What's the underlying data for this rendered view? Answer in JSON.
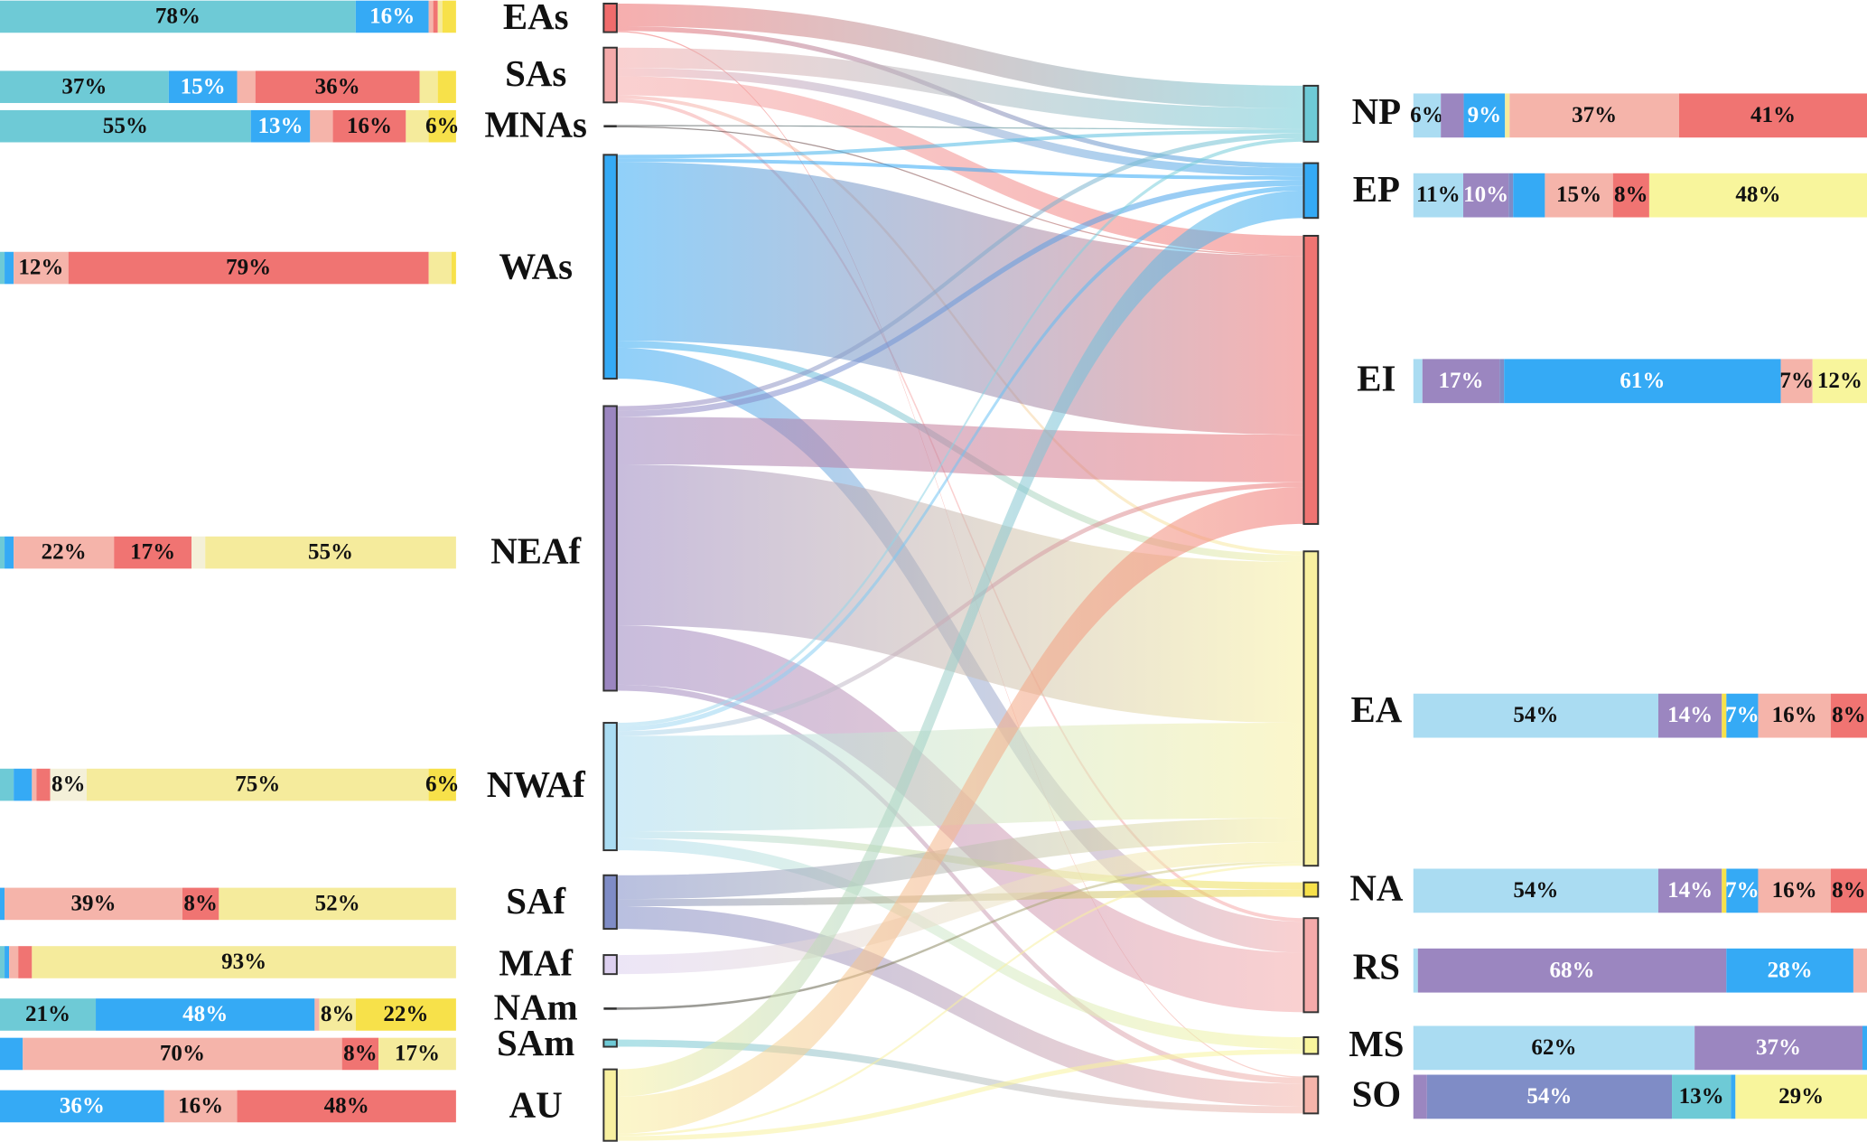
{
  "chart_data": {
    "type": "sankey",
    "nodes": [
      {
        "name": "EAs",
        "color": "#f06c6c",
        "bar": {
          "values": [
            78,
            16,
            1,
            1,
            1,
            3
          ],
          "colors": [
            "#6ecad6",
            "#35aaf5",
            "#f5b4aa",
            "#f07472",
            "#f5eb9c",
            "#f7e14a"
          ],
          "value_labels": [
            "78%",
            "16%",
            null,
            null,
            null,
            null
          ]
        }
      },
      {
        "name": "SAs",
        "color": "#f5aaaa",
        "bar": {
          "values": [
            37,
            15,
            4,
            36,
            4,
            4
          ],
          "colors": [
            "#6ecad6",
            "#35aaf5",
            "#f5b4aa",
            "#f07472",
            "#f5eb9c",
            "#f7e14a"
          ],
          "value_labels": [
            "37%",
            "15%",
            null,
            "36%",
            null,
            null
          ]
        }
      },
      {
        "name": "MNAs",
        "color": "#333333",
        "bar": {
          "values": [
            55,
            13,
            5,
            16,
            5,
            6
          ],
          "colors": [
            "#6ecad6",
            "#35aaf5",
            "#f5b4aa",
            "#f07472",
            "#f5eb9c",
            "#f7e14a"
          ],
          "value_labels": [
            "55%",
            "13%",
            null,
            "16%",
            null,
            "6%"
          ]
        }
      },
      {
        "name": "WAs",
        "color": "#35aaf5",
        "bar": {
          "values": [
            1,
            2,
            12,
            79,
            5,
            1
          ],
          "colors": [
            "#6ecad6",
            "#35aaf5",
            "#f5b4aa",
            "#f07472",
            "#f5eb9c",
            "#f7e14a"
          ],
          "value_labels": [
            null,
            null,
            "12%",
            "79%",
            null,
            null
          ]
        }
      },
      {
        "name": "NEAf",
        "color": "#9b86c0",
        "bar": {
          "values": [
            1,
            2,
            22,
            17,
            3,
            55
          ],
          "colors": [
            "#6ecad6",
            "#35aaf5",
            "#f5b4aa",
            "#f07472",
            "#f4f0d8",
            "#f5eb9c"
          ],
          "value_labels": [
            null,
            null,
            "22%",
            "17%",
            null,
            "55%"
          ]
        }
      },
      {
        "name": "NWAf",
        "color": "#aadcf2",
        "bar": {
          "values": [
            3,
            4,
            1,
            3,
            8,
            75,
            6
          ],
          "colors": [
            "#6ecad6",
            "#35aaf5",
            "#f5b4aa",
            "#f07472",
            "#f4f0d8",
            "#f5eb9c",
            "#f7e14a"
          ],
          "value_labels": [
            null,
            null,
            null,
            null,
            "8%",
            "75%",
            "6%"
          ]
        }
      },
      {
        "name": "SAf",
        "color": "#7f8cc6",
        "bar": {
          "values": [
            1,
            39,
            8,
            52
          ],
          "colors": [
            "#35aaf5",
            "#f5b4aa",
            "#f07472",
            "#f5eb9c"
          ],
          "value_labels": [
            null,
            "39%",
            "8%",
            "52%"
          ]
        }
      },
      {
        "name": "MAf",
        "color": "#ddd0f0",
        "bar": {
          "values": [
            1,
            1,
            2,
            3,
            93
          ],
          "colors": [
            "#6ecad6",
            "#35aaf5",
            "#f5b4aa",
            "#f07472",
            "#f5eb9c"
          ],
          "value_labels": [
            null,
            null,
            null,
            null,
            "93%"
          ]
        }
      },
      {
        "name": "NAm",
        "color": "#333333",
        "bar": {
          "values": [
            21,
            48,
            1,
            8,
            22
          ],
          "colors": [
            "#6ecad6",
            "#35aaf5",
            "#f5b4aa",
            "#f5eb9c",
            "#f7e14a"
          ],
          "value_labels": [
            "21%",
            "48%",
            null,
            "8%",
            "22%"
          ]
        }
      },
      {
        "name": "SAm",
        "color": "#6ecad6",
        "bar": {
          "values": [
            5,
            70,
            8,
            17
          ],
          "colors": [
            "#35aaf5",
            "#f5b4aa",
            "#f07472",
            "#f5eb9c"
          ],
          "value_labels": [
            null,
            "70%",
            "8%",
            "17%"
          ]
        }
      },
      {
        "name": "AU",
        "color": "#f8f0a0",
        "bar": {
          "values": [
            36,
            16,
            48
          ],
          "colors": [
            "#35aaf5",
            "#f5b4aa",
            "#f07472"
          ],
          "value_labels": [
            "36%",
            "16%",
            "48%"
          ]
        }
      },
      {
        "name": "NP",
        "color": "#6ecad6",
        "bar": {
          "values": [
            6,
            5,
            9,
            1,
            37,
            41
          ],
          "colors": [
            "#aadcf2",
            "#9b86c0",
            "#35aaf5",
            "#f5eb9c",
            "#f5b4aa",
            "#f07472"
          ],
          "value_labels": [
            "6%",
            null,
            "9%",
            null,
            "37%",
            "41%"
          ]
        }
      },
      {
        "name": "EP",
        "color": "#35aaf5",
        "bar": {
          "values": [
            11,
            10,
            1,
            7,
            15,
            8,
            48
          ],
          "colors": [
            "#aadcf2",
            "#9b86c0",
            "#7f8cc6",
            "#35aaf5",
            "#f5b4aa",
            "#f07472",
            "#f8f59c"
          ],
          "value_labels": [
            "11%",
            "10%",
            null,
            null,
            "15%",
            "8%",
            "48%"
          ]
        }
      },
      {
        "name": "EI",
        "color": "#f07472",
        "bar": {
          "values": [
            2,
            17,
            1,
            61,
            7,
            12
          ],
          "colors": [
            "#aadcf2",
            "#9b86c0",
            "#7f8cc6",
            "#35aaf5",
            "#f5b4aa",
            "#f8f59c"
          ],
          "value_labels": [
            null,
            "17%",
            null,
            "61%",
            "7%",
            "12%"
          ]
        }
      },
      {
        "name": "EA",
        "color": "#f8f0a0",
        "bar": {
          "values": [
            54,
            14,
            1,
            7,
            16,
            8
          ],
          "colors": [
            "#aadcf2",
            "#9b86c0",
            "#f7e14a",
            "#35aaf5",
            "#f5b4aa",
            "#f07472"
          ],
          "value_labels": [
            "54%",
            "14%",
            null,
            "7%",
            "16%",
            "8%"
          ]
        }
      },
      {
        "name": "NA",
        "color": "#f7e14a",
        "bar": {
          "values": [
            54,
            14,
            1,
            7,
            16,
            8
          ],
          "colors": [
            "#aadcf2",
            "#9b86c0",
            "#f7e14a",
            "#35aaf5",
            "#f5b4aa",
            "#f07472"
          ],
          "value_labels": [
            "54%",
            "14%",
            null,
            "7%",
            "16%",
            "8%"
          ]
        }
      },
      {
        "name": "RS",
        "color": "#f5aaaa",
        "bar": {
          "values": [
            1,
            68,
            28,
            3
          ],
          "colors": [
            "#aadcf2",
            "#9b86c0",
            "#35aaf5",
            "#f5b4aa"
          ],
          "value_labels": [
            null,
            "68%",
            "28%",
            null
          ]
        }
      },
      {
        "name": "MS",
        "color": "#f8f59c",
        "bar": {
          "values": [
            62,
            37,
            1
          ],
          "colors": [
            "#aadcf2",
            "#9b86c0",
            "#35aaf5"
          ],
          "value_labels": [
            "62%",
            "37%",
            null
          ]
        }
      },
      {
        "name": "SO",
        "color": "#f5b4aa",
        "bar": {
          "values": [
            3,
            54,
            13,
            1,
            29
          ],
          "colors": [
            "#9b86c0",
            "#7f8cc6",
            "#6ecad6",
            "#35aaf5",
            "#f8f59c"
          ],
          "value_labels": [
            null,
            "54%",
            "13%",
            null,
            "29%"
          ]
        }
      }
    ],
    "links": [
      {
        "source": 0,
        "target": 11,
        "value": 19
      },
      {
        "source": 0,
        "target": 12,
        "value": 4
      },
      {
        "source": 0,
        "target": 18,
        "value": 1
      },
      {
        "source": 1,
        "target": 11,
        "value": 17
      },
      {
        "source": 1,
        "target": 12,
        "value": 7
      },
      {
        "source": 1,
        "target": 13,
        "value": 16
      },
      {
        "source": 1,
        "target": 14,
        "value": 3
      },
      {
        "source": 1,
        "target": 16,
        "value": 3
      },
      {
        "source": 2,
        "target": 11,
        "value": 1
      },
      {
        "source": 2,
        "target": 13,
        "value": 1
      },
      {
        "source": 3,
        "target": 11,
        "value": 3
      },
      {
        "source": 3,
        "target": 12,
        "value": 3
      },
      {
        "source": 3,
        "target": 13,
        "value": 150
      },
      {
        "source": 3,
        "target": 14,
        "value": 6
      },
      {
        "source": 3,
        "target": 16,
        "value": 26
      },
      {
        "source": 4,
        "target": 11,
        "value": 4
      },
      {
        "source": 4,
        "target": 12,
        "value": 5
      },
      {
        "source": 4,
        "target": 13,
        "value": 40
      },
      {
        "source": 4,
        "target": 14,
        "value": 135
      },
      {
        "source": 4,
        "target": 16,
        "value": 50
      },
      {
        "source": 4,
        "target": 18,
        "value": 5
      },
      {
        "source": 5,
        "target": 11,
        "value": 3
      },
      {
        "source": 5,
        "target": 12,
        "value": 4
      },
      {
        "source": 5,
        "target": 13,
        "value": 4
      },
      {
        "source": 5,
        "target": 14,
        "value": 80
      },
      {
        "source": 5,
        "target": 15,
        "value": 6
      },
      {
        "source": 5,
        "target": 17,
        "value": 10
      },
      {
        "source": 6,
        "target": 14,
        "value": 20
      },
      {
        "source": 6,
        "target": 15,
        "value": 6
      },
      {
        "source": 6,
        "target": 18,
        "value": 19
      },
      {
        "source": 7,
        "target": 14,
        "value": 16
      },
      {
        "source": 8,
        "target": 14,
        "value": 2
      },
      {
        "source": 9,
        "target": 18,
        "value": 6
      },
      {
        "source": 10,
        "target": 12,
        "value": 23
      },
      {
        "source": 10,
        "target": 13,
        "value": 31
      },
      {
        "source": 10,
        "target": 14,
        "value": 2
      },
      {
        "source": 10,
        "target": 17,
        "value": 4
      }
    ]
  }
}
